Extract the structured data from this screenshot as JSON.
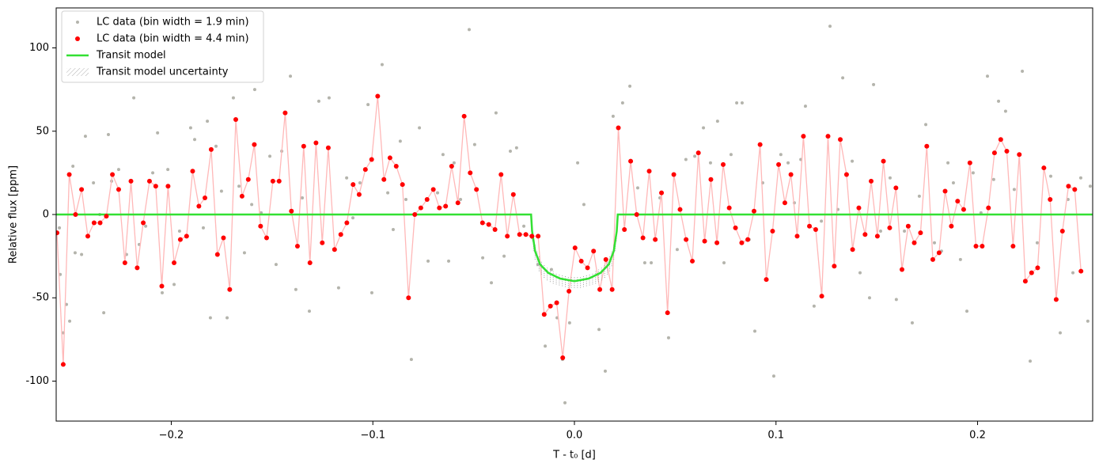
{
  "chart_data": {
    "type": "scatter",
    "xlabel": "T - t₀ [d]",
    "ylabel": "Relative flux [ppm]",
    "xlim": [
      -0.2571,
      0.2571
    ],
    "ylim": [
      -124,
      124
    ],
    "xticks": [
      {
        "value": -0.2,
        "label": "−0.2"
      },
      {
        "value": -0.1,
        "label": "−0.1"
      },
      {
        "value": 0,
        "label": "0.0"
      },
      0.1,
      0.2
    ],
    "yticks": [
      -100,
      -50,
      0,
      50,
      100
    ],
    "legend": "upper left",
    "series": [
      {
        "name": "LC data (bin width = 1.9 min)",
        "kind": "points",
        "color": "#b4b4ac",
        "x": [
          -0.2555,
          -0.2551,
          -0.2536,
          -0.252,
          -0.2504,
          -0.2488,
          -0.2477,
          -0.2445,
          -0.2426,
          -0.2386,
          -0.2355,
          -0.2335,
          -0.2312,
          -0.2296,
          -0.2261,
          -0.2222,
          -0.2186,
          -0.2159,
          -0.2127,
          -0.2092,
          -0.2068,
          -0.2045,
          -0.2017,
          -0.1986,
          -0.1959,
          -0.1904,
          -0.1884,
          -0.1841,
          -0.1821,
          -0.1806,
          -0.1778,
          -0.1751,
          -0.1723,
          -0.1692,
          -0.1664,
          -0.1637,
          -0.1601,
          -0.1586,
          -0.1554,
          -0.1511,
          -0.148,
          -0.1452,
          -0.1409,
          -0.1382,
          -0.135,
          -0.1315,
          -0.1268,
          -0.1217,
          -0.117,
          -0.113,
          -0.1099,
          -0.1064,
          -0.1024,
          -0.1005,
          -0.0954,
          -0.0926,
          -0.0899,
          -0.0864,
          -0.0836,
          -0.0809,
          -0.0769,
          -0.0726,
          -0.0679,
          -0.0652,
          -0.0624,
          -0.0597,
          -0.0565,
          -0.0522,
          -0.0495,
          -0.0455,
          -0.0412,
          -0.0389,
          -0.0349,
          -0.0318,
          -0.0287,
          -0.0251,
          -0.0208,
          -0.0181,
          -0.0145,
          -0.0114,
          -0.0086,
          -0.0059,
          -0.0047,
          -0.0024,
          0.0016,
          0.0047,
          0.0094,
          0.0122,
          0.0153,
          0.0192,
          0.0239,
          0.0275,
          0.0314,
          0.0349,
          0.0381,
          0.0424,
          0.0467,
          0.051,
          0.0553,
          0.0597,
          0.064,
          0.0675,
          0.071,
          0.0742,
          0.0777,
          0.0805,
          0.0832,
          0.0867,
          0.0895,
          0.0934,
          0.0989,
          0.1024,
          0.106,
          0.1091,
          0.1123,
          0.1146,
          0.1189,
          0.1225,
          0.1268,
          0.1307,
          0.1331,
          0.1378,
          0.1417,
          0.1464,
          0.1484,
          0.1519,
          0.1566,
          0.1597,
          0.1637,
          0.1676,
          0.1711,
          0.1743,
          0.1786,
          0.1821,
          0.1853,
          0.188,
          0.1915,
          0.1947,
          0.1978,
          0.2017,
          0.2049,
          0.208,
          0.2104,
          0.2139,
          0.2182,
          0.2222,
          0.2261,
          0.2296,
          0.2328,
          0.2363,
          0.241,
          0.2449,
          0.2473,
          0.2512,
          0.2547,
          0.2559
        ],
        "values": [
          -8,
          -36,
          -71,
          -54,
          -64,
          29,
          -23,
          -24,
          47,
          19,
          0,
          -59,
          48,
          20,
          27,
          -24,
          70,
          -18,
          -7,
          25,
          49,
          -47,
          27,
          -42,
          -10,
          52,
          45,
          -8,
          56,
          -62,
          41,
          14,
          -62,
          70,
          17,
          -23,
          6,
          75,
          1,
          35,
          -30,
          38,
          83,
          -45,
          10,
          -58,
          68,
          70,
          -44,
          22,
          -2,
          19,
          66,
          -47,
          90,
          13,
          -9,
          44,
          9,
          -87,
          52,
          -28,
          13,
          36,
          -28,
          31,
          9,
          111,
          42,
          -26,
          -41,
          61,
          -25,
          38,
          40,
          -7,
          -14,
          -30,
          -79,
          -33,
          -62,
          -87,
          -113,
          -65,
          31,
          6,
          -22,
          -69,
          -94,
          59,
          67,
          77,
          16,
          -29,
          -29,
          10,
          -74,
          -21,
          33,
          35,
          52,
          31,
          56,
          -29,
          36,
          67,
          67,
          -15,
          -70,
          19,
          -97,
          36,
          31,
          7,
          33,
          65,
          -55,
          -4,
          113,
          3,
          82,
          32,
          -35,
          -50,
          78,
          -10,
          22,
          -51,
          -10,
          -65,
          11,
          54,
          -17,
          -22,
          31,
          19,
          -27,
          -58,
          25,
          1,
          83,
          21,
          68,
          62,
          15,
          86,
          -88,
          -17,
          28,
          23,
          -71,
          9,
          -35,
          22,
          -64,
          17
        ]
      },
      {
        "name": "LC data (bin width = 4.4 min)",
        "kind": "points",
        "color": "#ff0000",
        "line_color": "#ffb8b8",
        "x": [
          -0.2567,
          -0.2536,
          -0.2506,
          -0.2475,
          -0.2445,
          -0.2414,
          -0.2383,
          -0.2353,
          -0.2322,
          -0.2292,
          -0.2261,
          -0.223,
          -0.22,
          -0.2169,
          -0.2139,
          -0.2108,
          -0.2077,
          -0.2047,
          -0.2016,
          -0.1986,
          -0.1955,
          -0.1924,
          -0.1894,
          -0.1863,
          -0.1833,
          -0.1802,
          -0.1771,
          -0.1741,
          -0.171,
          -0.168,
          -0.1649,
          -0.1618,
          -0.1588,
          -0.1557,
          -0.1527,
          -0.1496,
          -0.1465,
          -0.1435,
          -0.1404,
          -0.1374,
          -0.1343,
          -0.1312,
          -0.1282,
          -0.1251,
          -0.1221,
          -0.119,
          -0.1159,
          -0.1129,
          -0.1098,
          -0.1068,
          -0.1037,
          -0.1006,
          -0.0976,
          -0.0945,
          -0.0915,
          -0.0884,
          -0.0853,
          -0.0823,
          -0.0792,
          -0.0762,
          -0.0731,
          -0.07,
          -0.067,
          -0.0639,
          -0.0609,
          -0.0578,
          -0.0547,
          -0.0517,
          -0.0486,
          -0.0456,
          -0.0425,
          -0.0394,
          -0.0364,
          -0.0333,
          -0.0303,
          -0.0272,
          -0.0241,
          -0.0211,
          -0.018,
          -0.015,
          -0.0119,
          -0.0088,
          -0.0058,
          -0.0027,
          0.0003,
          0.0034,
          0.0065,
          0.0095,
          0.0126,
          0.0156,
          0.0187,
          0.0218,
          0.0248,
          0.0279,
          0.0309,
          0.034,
          0.0371,
          0.0401,
          0.0432,
          0.0462,
          0.0493,
          0.0524,
          0.0554,
          0.0585,
          0.0615,
          0.0646,
          0.0677,
          0.0707,
          0.0738,
          0.0768,
          0.0799,
          0.083,
          0.086,
          0.0891,
          0.0921,
          0.0952,
          0.0983,
          0.1013,
          0.1044,
          0.1074,
          0.1105,
          0.1136,
          0.1166,
          0.1197,
          0.1227,
          0.1258,
          0.1289,
          0.1319,
          0.135,
          0.138,
          0.1411,
          0.1442,
          0.1472,
          0.1503,
          0.1533,
          0.1564,
          0.1595,
          0.1625,
          0.1656,
          0.1686,
          0.1717,
          0.1748,
          0.1778,
          0.1809,
          0.1839,
          0.187,
          0.1901,
          0.1931,
          0.1962,
          0.1992,
          0.2023,
          0.2054,
          0.2084,
          0.2115,
          0.2145,
          0.2176,
          0.2207,
          0.2237,
          0.2268,
          0.2298,
          0.2329,
          0.236,
          0.239,
          0.2421,
          0.2451,
          0.2482,
          0.2513
        ],
        "values": [
          -11,
          -90,
          24,
          0,
          15,
          -13,
          -5,
          -5,
          -1,
          24,
          15,
          -29,
          20,
          -32,
          -5,
          20,
          17,
          -43,
          17,
          -29,
          -15,
          -13,
          26,
          5,
          10,
          39,
          -24,
          -14,
          -45,
          57,
          11,
          21,
          42,
          -7,
          -14,
          20,
          20,
          61,
          2,
          -19,
          41,
          -29,
          43,
          -17,
          40,
          -21,
          -12,
          -5,
          18,
          12,
          27,
          33,
          71,
          21,
          34,
          29,
          18,
          -50,
          0,
          4,
          9,
          15,
          4,
          5,
          29,
          7,
          59,
          25,
          15,
          -5,
          -6,
          -9,
          24,
          -13,
          12,
          -12,
          -12,
          -13,
          -13,
          -60,
          -55,
          -53,
          -86,
          -46,
          -20,
          -28,
          -32,
          -22,
          -45,
          -27,
          -45,
          52,
          -9,
          32,
          0,
          -14,
          26,
          -15,
          13,
          -59,
          24,
          3,
          -15,
          -28,
          37,
          -16,
          21,
          -17,
          30,
          4,
          -8,
          -17,
          -15,
          2,
          42,
          -39,
          -10,
          30,
          7,
          24,
          -13,
          47,
          -7,
          -9,
          -49,
          47,
          -31,
          45,
          24,
          -21,
          4,
          -12,
          20,
          -13,
          32,
          -8,
          16,
          -33,
          -7,
          -17,
          -11,
          41,
          -27,
          -23,
          14,
          -7,
          8,
          3,
          31,
          -19,
          -19,
          4,
          37,
          45,
          38,
          -19,
          36,
          -40,
          -35,
          -32,
          28,
          9,
          -51,
          -10,
          17,
          15,
          -34
        ]
      },
      {
        "name": "Transit model",
        "kind": "line",
        "color": "#33e033",
        "x": [
          -0.2571,
          -0.0215,
          -0.021,
          -0.0195,
          -0.017,
          -0.013,
          -0.007,
          0,
          0.007,
          0.013,
          0.017,
          0.0195,
          0.021,
          0.0215,
          0.2571
        ],
        "values": [
          0,
          0,
          -10,
          -22,
          -30,
          -35,
          -38.5,
          -40,
          -38.5,
          -35,
          -30,
          -22,
          -10,
          0,
          0
        ]
      },
      {
        "name": "Transit model uncertainty",
        "kind": "band",
        "color": "#a0a0a0",
        "x": [
          -0.0215,
          -0.0212,
          -0.0208,
          -0.0203,
          -0.0195,
          -0.0185,
          -0.0175,
          -0.0163,
          -0.015,
          -0.0135,
          -0.012,
          -0.0105,
          -0.009,
          -0.0075,
          -0.006,
          -0.0045,
          -0.003,
          -0.0015,
          0,
          0.0015,
          0.003,
          0.0045,
          0.006,
          0.0075,
          0.009,
          0.0105,
          0.012,
          0.0135,
          0.015,
          0.0163,
          0.0175,
          0.0185,
          0.0195,
          0.0203,
          0.0208,
          0.0212,
          0.0215
        ],
        "upper": [
          0,
          -3,
          -8,
          -13,
          -18,
          -22,
          -25,
          -28,
          -30,
          -32,
          -33,
          -34,
          -35,
          -35.5,
          -36,
          -36.5,
          -37,
          -37,
          -37,
          -37,
          -37,
          -36.5,
          -36,
          -35.5,
          -35,
          -34,
          -33,
          -32,
          -30,
          -28,
          -25,
          -22,
          -18,
          -13,
          -8,
          -3,
          0
        ],
        "lower": [
          0,
          -8,
          -16,
          -22,
          -27,
          -31,
          -34,
          -36,
          -38,
          -39.5,
          -40.5,
          -41.5,
          -42,
          -42.5,
          -43,
          -43.5,
          -44,
          -44,
          -44,
          -44,
          -44,
          -43.5,
          -43,
          -42.5,
          -42,
          -41.5,
          -40.5,
          -39.5,
          -38,
          -36,
          -34,
          -31,
          -27,
          -22,
          -16,
          -8,
          0
        ]
      }
    ]
  }
}
